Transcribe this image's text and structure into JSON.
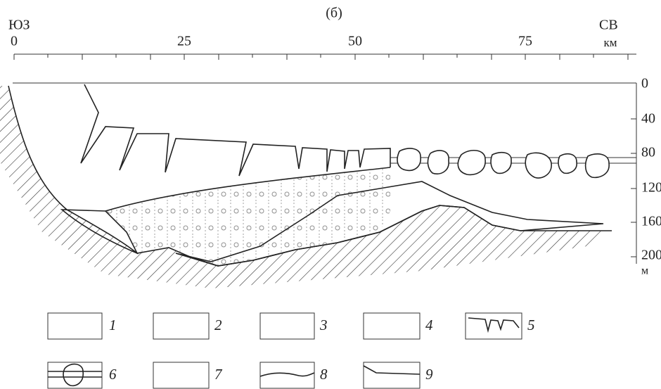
{
  "header": {
    "panel": "(б)",
    "left_direction": "ЮЗ",
    "right_direction": "СВ"
  },
  "distance_axis": {
    "ticks": [
      "0",
      "25",
      "50",
      "75"
    ],
    "unit": "км"
  },
  "depth_axis": {
    "ticks": [
      "0",
      "40",
      "80",
      "120",
      "160",
      "200"
    ],
    "unit": "м"
  },
  "legend": {
    "items": [
      "1",
      "2",
      "3",
      "4",
      "5",
      "6",
      "7",
      "8",
      "9"
    ]
  }
}
